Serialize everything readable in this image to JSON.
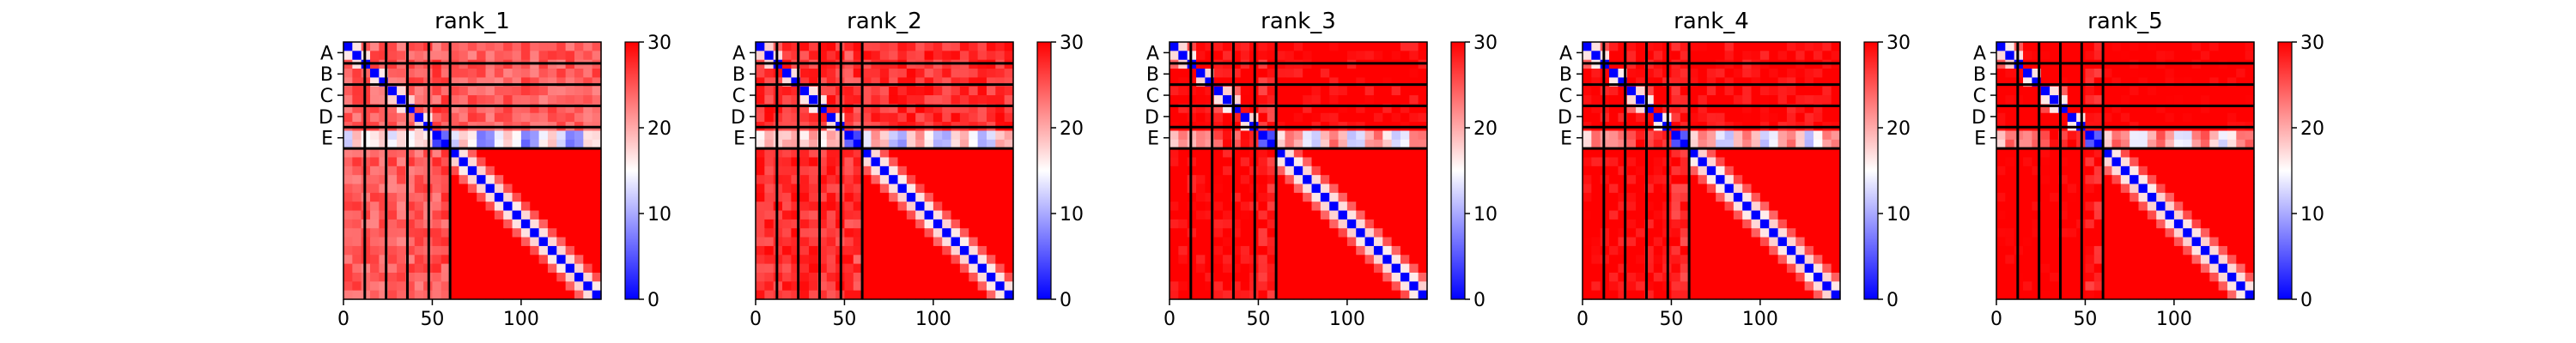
{
  "chart_data": {
    "type": "heatmap",
    "description_free": true,
    "panels": [
      {
        "title": "rank_1"
      },
      {
        "title": "rank_2"
      },
      {
        "title": "rank_3"
      },
      {
        "title": "rank_4"
      },
      {
        "title": "rank_5"
      }
    ],
    "chains": [
      "A",
      "B",
      "C",
      "D",
      "E"
    ],
    "chain_boundaries": [
      0,
      12,
      24,
      36,
      48,
      60,
      145
    ],
    "x_ticks": [
      0,
      50,
      100
    ],
    "x_lim": [
      0,
      145
    ],
    "colorbar": {
      "ticks": [
        0,
        10,
        20,
        30
      ],
      "min": 0,
      "max": 30,
      "colormap": "bwr",
      "colors": {
        "low": "#0000ff",
        "mid": "#ffffff",
        "high": "#ff0000"
      }
    }
  }
}
